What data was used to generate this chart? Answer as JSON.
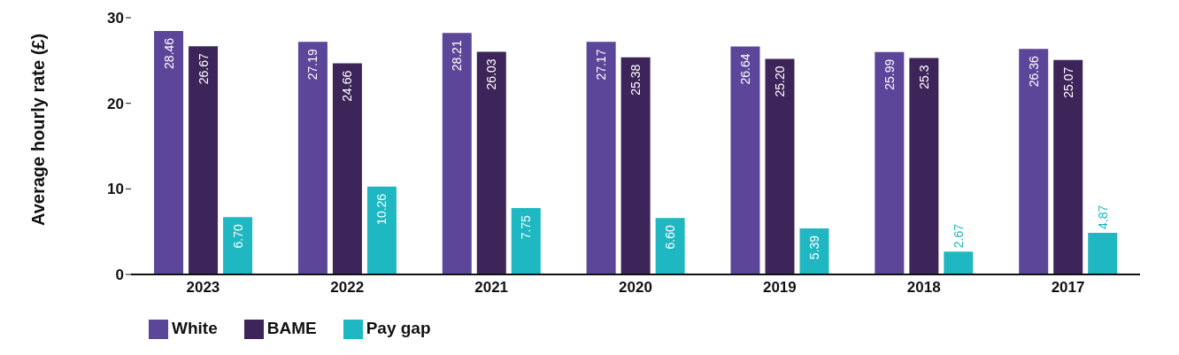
{
  "chart_data": {
    "type": "bar",
    "ylabel": "Average hourly rate (£)",
    "categories": [
      "2023",
      "2022",
      "2021",
      "2020",
      "2019",
      "2018",
      "2017"
    ],
    "series": [
      {
        "name": "White",
        "color": "#5b4699",
        "values": [
          28.46,
          27.19,
          28.21,
          27.17,
          26.64,
          25.99,
          26.36
        ],
        "value_labels": [
          "28.46",
          "27.19",
          "28.21",
          "27.17",
          "26.64",
          "25.99",
          "26.36"
        ]
      },
      {
        "name": "BAME",
        "color": "#3d2459",
        "values": [
          26.67,
          24.66,
          26.03,
          25.38,
          25.2,
          25.3,
          25.07
        ],
        "value_labels": [
          "26.67",
          "24.66",
          "26.03",
          "25.38",
          "25.20",
          "25.3",
          "25.07"
        ]
      },
      {
        "name": "Pay gap",
        "color": "#1fb7c1",
        "values": [
          6.7,
          10.26,
          7.75,
          6.6,
          5.39,
          2.67,
          4.87
        ],
        "value_labels": [
          "6.70",
          "10.26",
          "7.75",
          "6.60",
          "5.39",
          "2.67",
          "4.87"
        ]
      }
    ],
    "ylim": [
      0,
      30
    ],
    "yticks": [
      0,
      10,
      20,
      30
    ],
    "grid": false,
    "legend": "bottom left"
  }
}
